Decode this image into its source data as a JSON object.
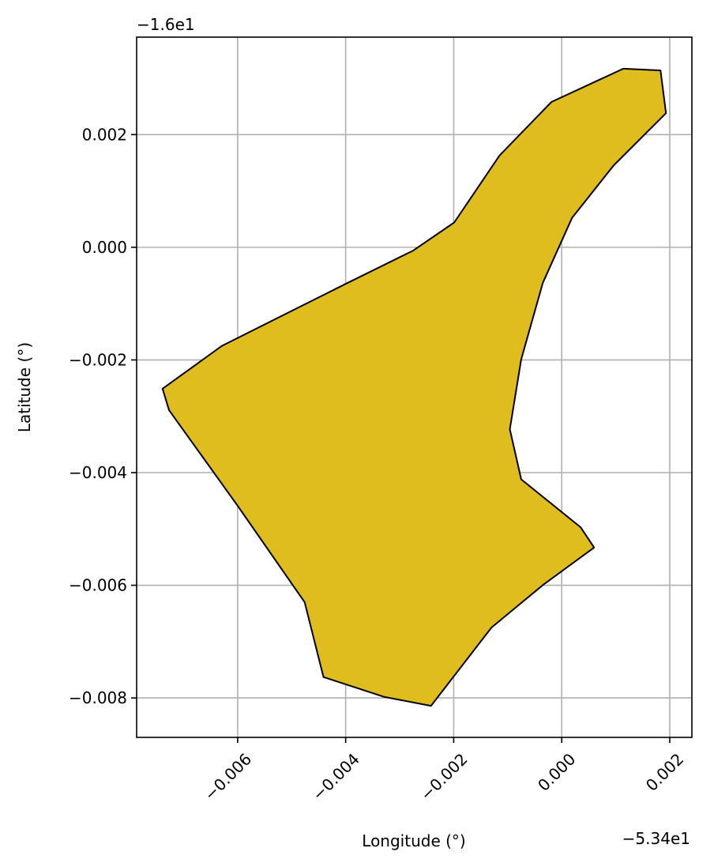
{
  "chart_data": {
    "type": "polygon",
    "xlabel": "Longitude (°)",
    "ylabel": "Latitude (°)",
    "x_offset_label": "−5.34e1",
    "y_offset_label": "−1.6e1",
    "fill_color": "#dfbd1f",
    "edge_color": "#000000",
    "grid": true,
    "xlim": [
      -0.00787,
      0.00241
    ],
    "ylim": [
      -0.0087,
      0.00373
    ],
    "xticks": [
      {
        "value": -0.006,
        "label": "−0.006"
      },
      {
        "value": -0.004,
        "label": "−0.004"
      },
      {
        "value": -0.002,
        "label": "−0.002"
      },
      {
        "value": 0,
        "label": "0.000"
      },
      0.002
    ],
    "yticks": [
      {
        "value": -0.008,
        "label": "−0.008"
      },
      {
        "value": -0.006,
        "label": "−0.006"
      },
      {
        "value": -0.004,
        "label": "−0.004"
      },
      {
        "value": -0.002,
        "label": "−0.002"
      },
      {
        "value": 0,
        "label": "0.000"
      },
      0.002
    ],
    "x": [
      0.00114,
      0.00183,
      0.00193,
      0.00096,
      0.00019,
      -0.00035,
      -0.00075,
      -0.00096,
      -0.00075,
      0.00035,
      0.0006,
      -0.00034,
      -0.0013,
      -0.00242,
      -0.00329,
      -0.00441,
      -0.00476,
      -0.006,
      -0.00727,
      -0.00739,
      -0.00629,
      -0.00396,
      -0.00275,
      -0.00199,
      -0.00115,
      -0.00019
    ],
    "y": [
      0.00317,
      0.00314,
      0.00238,
      0.00145,
      0.00052,
      -0.00063,
      -0.00199,
      -0.00323,
      -0.00412,
      -0.00497,
      -0.00533,
      -0.00599,
      -0.00675,
      -0.00814,
      -0.00798,
      -0.00763,
      -0.0063,
      -0.00459,
      -0.00289,
      -0.00251,
      -0.00175,
      -0.00063,
      -6e-05,
      0.00044,
      0.00163,
      0.00258
    ]
  }
}
